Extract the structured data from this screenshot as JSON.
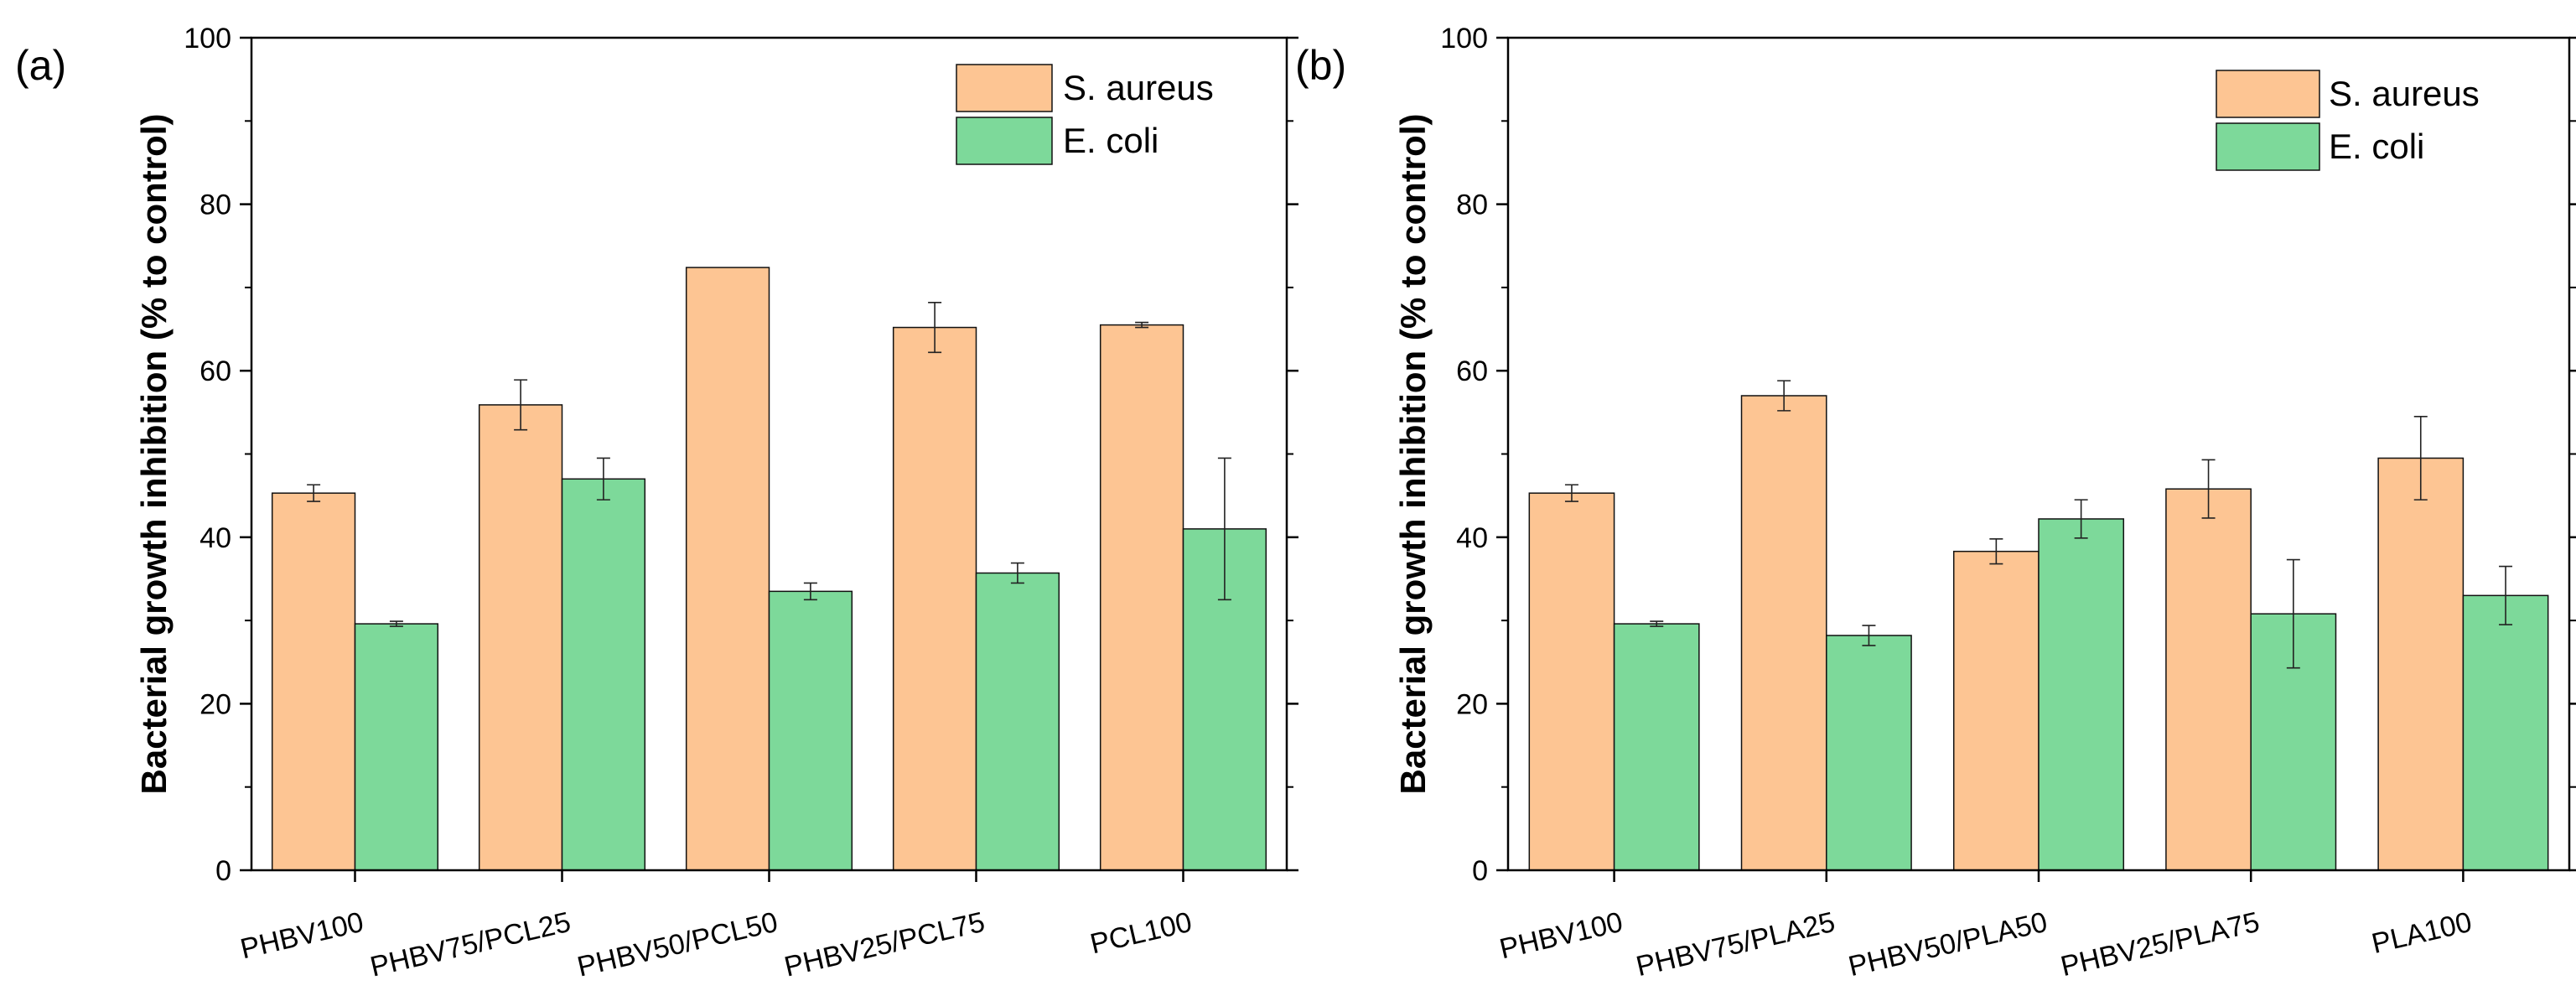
{
  "colors": {
    "s_aureus": "#FDC593",
    "e_coli": "#7DD99A",
    "axis": "#000000"
  },
  "chart_data": [
    {
      "type": "bar",
      "panel_label": "(a)",
      "ylabel": "Bacterial growth inhibition (% to control)",
      "xlabel": "",
      "ylim": [
        0,
        100
      ],
      "yticks": [
        0,
        20,
        40,
        60,
        80,
        100
      ],
      "grid": false,
      "legend_position": "top-right",
      "categories": [
        "PHBV100",
        "PHBV75/PCL25",
        "PHBV50/PCL50",
        "PHBV25/PCL75",
        "PCL100"
      ],
      "series": [
        {
          "name": "S. aureus",
          "values": [
            45.3,
            55.9,
            72.4,
            65.2,
            65.5
          ],
          "errors": [
            1.0,
            3.0,
            0,
            3.0,
            0.3
          ]
        },
        {
          "name": "E. coli",
          "values": [
            29.6,
            47.0,
            33.5,
            35.7,
            41.0
          ],
          "errors": [
            0.3,
            2.5,
            1.0,
            1.2,
            8.5
          ]
        }
      ]
    },
    {
      "type": "bar",
      "panel_label": "(b)",
      "ylabel": "Bacterial growth inhibition (% to control)",
      "xlabel": "",
      "ylim": [
        0,
        100
      ],
      "yticks": [
        0,
        20,
        40,
        60,
        80,
        100
      ],
      "grid": false,
      "legend_position": "top-right",
      "categories": [
        "PHBV100",
        "PHBV75/PLA25",
        "PHBV50/PLA50",
        "PHBV25/PLA75",
        "PLA100"
      ],
      "series": [
        {
          "name": "S. aureus",
          "values": [
            45.3,
            57.0,
            38.3,
            45.8,
            49.5
          ],
          "errors": [
            1.0,
            1.8,
            1.5,
            3.5,
            5.0
          ]
        },
        {
          "name": "E. coli",
          "values": [
            29.6,
            28.2,
            42.2,
            30.8,
            33.0
          ],
          "errors": [
            0.3,
            1.2,
            2.3,
            6.5,
            3.5
          ]
        }
      ]
    }
  ]
}
